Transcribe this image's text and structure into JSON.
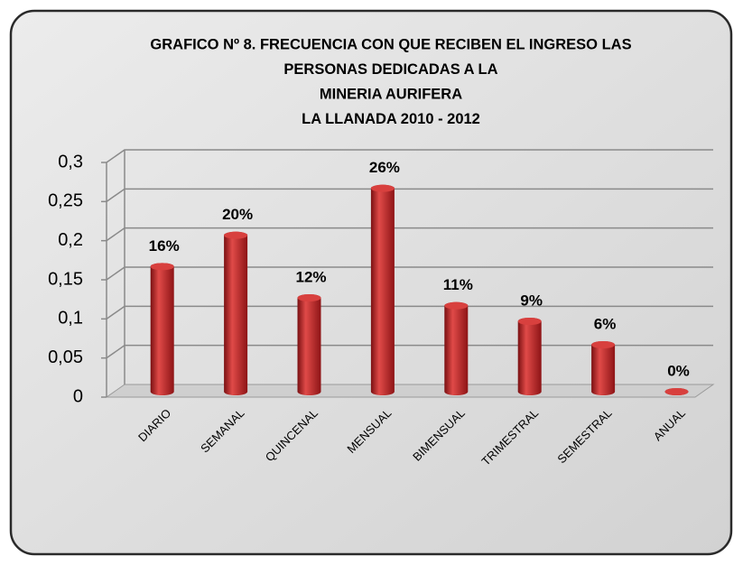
{
  "chart_data": {
    "type": "bar",
    "title": [
      "GRAFICO Nº 8.  FRECUENCIA CON QUE RECIBEN EL INGRESO LAS",
      "PERSONAS DEDICADAS A LA",
      "MINERIA AURIFERA",
      "LA LLANADA 2010 - 2012"
    ],
    "categories": [
      "DIARIO",
      "SEMANAL",
      "QUINCENAL",
      "MENSUAL",
      "BIMENSUAL",
      "TRIMESTRAL",
      "SEMESTRAL",
      "ANUAL"
    ],
    "values": [
      0.16,
      0.2,
      0.12,
      0.26,
      0.11,
      0.09,
      0.06,
      0
    ],
    "value_labels": [
      "16%",
      "20%",
      "12%",
      "26%",
      "11%",
      "9%",
      "6%",
      "0%"
    ],
    "color": "#c0282a",
    "ylim": [
      0,
      0.3
    ],
    "yticks": [
      0,
      {
        "value": 0.05,
        "label": "0,05"
      },
      {
        "value": 0.1,
        "label": "0,1"
      },
      {
        "value": 0.15,
        "label": "0,15"
      },
      {
        "value": 0.2,
        "label": "0,2"
      },
      {
        "value": 0.25,
        "label": "0,25"
      },
      {
        "value": 0.3,
        "label": "0,3"
      }
    ],
    "grid": true
  }
}
